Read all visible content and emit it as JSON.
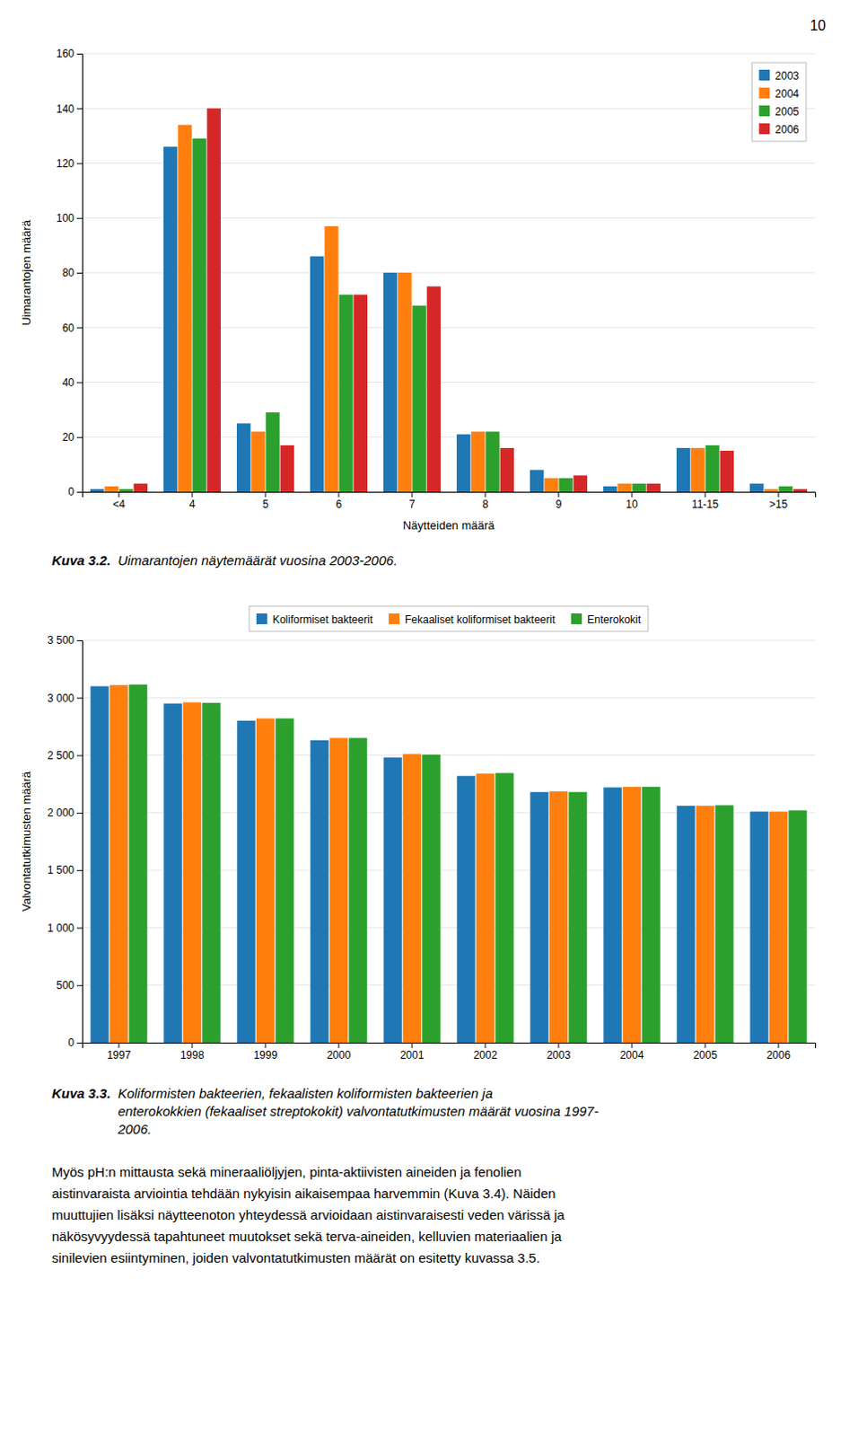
{
  "page_number": "10",
  "body_text": [
    "Myös pH:n mittausta sekä mineraaliöljyjen, pinta-aktiivisten aineiden ja fenolien",
    "aistinvaraista arviointia tehdään nykyisin aikaisempaa harvemmin (Kuva 3.4). Näiden",
    "muuttujien lisäksi näytteenoton yhteydessä arvioidaan aistinvaraisesti veden värissä ja",
    "näkösyvyydessä tapahtuneet muutokset sekä terva-aineiden, kelluvien materiaalien ja",
    "sinilevien esiintyminen, joiden valvontatutkimusten määrät on esitetty kuvassa 3.5."
  ],
  "chart_data": [
    {
      "type": "bar",
      "categories": [
        "<4",
        "4",
        "5",
        "6",
        "7",
        "8",
        "9",
        "10",
        "11-15",
        ">15"
      ],
      "series": [
        {
          "name": "2003",
          "values": [
            1,
            126,
            25,
            86,
            80,
            21,
            8,
            2,
            16,
            3
          ]
        },
        {
          "name": "2004",
          "values": [
            2,
            134,
            22,
            97,
            80,
            22,
            5,
            3,
            16,
            1
          ]
        },
        {
          "name": "2005",
          "values": [
            1,
            129,
            29,
            72,
            68,
            22,
            5,
            3,
            17,
            2
          ]
        },
        {
          "name": "2006",
          "values": [
            3,
            140,
            17,
            72,
            75,
            16,
            6,
            3,
            15,
            1
          ]
        }
      ],
      "xlabel": "Näytteiden määrä",
      "ylabel": "Uimarantojen määrä",
      "ylim": [
        0,
        160
      ],
      "yticks": [
        0,
        20,
        40,
        60,
        80,
        100,
        120,
        140,
        160
      ],
      "grid": true,
      "legend": "top-right",
      "caption_label": "Kuva 3.2.",
      "caption": [
        "Uimarantojen näytemäärät vuosina 2003-2006."
      ]
    },
    {
      "type": "bar",
      "categories": [
        "1997",
        "1998",
        "1999",
        "2000",
        "2001",
        "2002",
        "2003",
        "2004",
        "2005",
        "2006"
      ],
      "series": [
        {
          "name": "Koliformiset bakteerit",
          "values": [
            3100,
            2950,
            2800,
            2630,
            2480,
            2320,
            2180,
            2220,
            2060,
            2010
          ]
        },
        {
          "name": "Fekaaliset koliformiset bakteerit",
          "values": [
            3110,
            2960,
            2820,
            2650,
            2510,
            2340,
            2185,
            2225,
            2060,
            2010
          ]
        },
        {
          "name": "Enterokokit",
          "values": [
            3115,
            2955,
            2820,
            2650,
            2505,
            2345,
            2180,
            2225,
            2065,
            2020
          ]
        }
      ],
      "ylabel": "Valvontatutkimusten määrä",
      "ylim": [
        0,
        3500
      ],
      "yticks": [
        0,
        500,
        {
          "value": 1000,
          "label": "1 000"
        },
        {
          "value": 1500,
          "label": "1 500"
        },
        {
          "value": 2000,
          "label": "2 000"
        },
        {
          "value": 2500,
          "label": "2 500"
        },
        {
          "value": 3000,
          "label": "3 000"
        },
        {
          "value": 3500,
          "label": "3 500"
        }
      ],
      "grid": true,
      "legend": "top",
      "caption_label": "Kuva 3.3.",
      "caption": [
        "Koliformisten bakteerien, fekaalisten koliformisten bakteerien ja",
        "enterokokkien (fekaaliset streptokokit) valvontatutkimusten määrät vuosina 1997-",
        "2006."
      ]
    }
  ]
}
